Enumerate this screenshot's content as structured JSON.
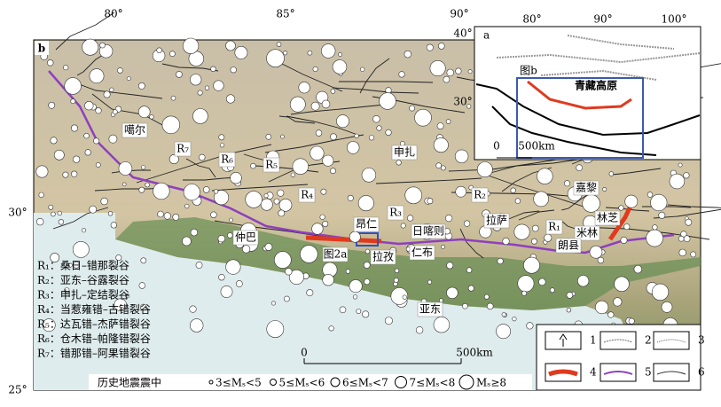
{
  "axes": {
    "lon": [
      "80°",
      "85°",
      "90°"
    ],
    "lat": [
      "30°",
      "25°"
    ]
  },
  "panel": "b",
  "places": [
    "噶尔",
    "仲巴",
    "昂仁",
    "拉孜",
    "日喀则",
    "仁布",
    "申扎",
    "拉萨",
    "嘉黎",
    "林芝",
    "米林",
    "朗县",
    "亚东",
    "图2a"
  ],
  "rifts": [
    "R₁",
    "R₂",
    "R₃",
    "R₄",
    "R₅",
    "R₆",
    "R₇"
  ],
  "rift_legend": [
    "R₁：桑日–错那裂谷",
    "R₂：亚东–谷露裂谷",
    "R₃：申扎–定结裂谷",
    "R₄：当惹雍错–古错裂谷",
    "R₅：达瓦错–杰萨错裂谷",
    "R₆：仓木错–帕隆错裂谷",
    "R₇：错那错–阿果错裂谷"
  ],
  "scale": [
    "0",
    "500km"
  ],
  "quake_legend": {
    "title": "历史地震震中",
    "classes": [
      "3≤Mₛ<5",
      "5≤Mₛ<6",
      "6≤Mₛ<7",
      "7≤Mₛ<8",
      "Mₛ≥8"
    ]
  },
  "symbol_legend": [
    "1",
    "2",
    "3",
    "4",
    "5",
    "6"
  ],
  "inset": {
    "label": "a",
    "lon": [
      "80°",
      "90°",
      "100°"
    ],
    "lat": [
      "40°",
      "30°"
    ],
    "region": "青藏高原",
    "box_label": "图b",
    "scale": [
      "0",
      "500km"
    ]
  }
}
